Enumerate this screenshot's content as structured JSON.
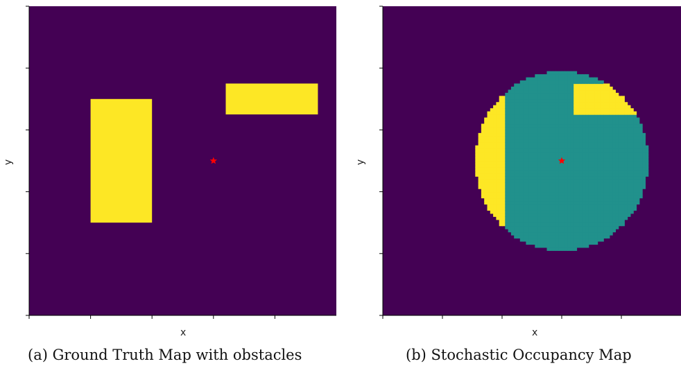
{
  "chart_data": [
    {
      "type": "heatmap",
      "title": "",
      "caption": "(a) Ground Truth Map with obstacles",
      "xlabel": "x",
      "ylabel": "y",
      "colormap": "viridis",
      "colors": {
        "free": "#440154",
        "obstacle": "#fde725",
        "robot": "#ff0000"
      },
      "xlim": [
        0,
        100
      ],
      "ylim": [
        0,
        100
      ],
      "x_ticks": [
        0,
        20,
        40,
        60,
        80
      ],
      "y_ticks": [
        0,
        20,
        40,
        60,
        80,
        100
      ],
      "tick_labels_shown": false,
      "obstacles": [
        {
          "x0": 20,
          "x1": 40,
          "y0": 30,
          "y1": 70
        },
        {
          "x0": 64,
          "x1": 94,
          "y0": 65,
          "y1": 75
        }
      ],
      "robot": {
        "x": 60,
        "y": 50,
        "marker": "star"
      }
    },
    {
      "type": "heatmap",
      "title": "",
      "caption": "(b) Stochastic Occupancy Map",
      "xlabel": "x",
      "ylabel": "y",
      "colormap": "viridis",
      "colors": {
        "free": "#440154",
        "observed_free": "#21918c",
        "obstacle": "#fde725",
        "robot": "#ff0000"
      },
      "xlim": [
        0,
        100
      ],
      "ylim": [
        0,
        100
      ],
      "x_ticks": [
        0,
        20,
        40,
        60,
        80
      ],
      "y_ticks": [
        0,
        20,
        40,
        60,
        80,
        100
      ],
      "tick_labels_shown": false,
      "sensor_radius": 29,
      "robot": {
        "x": 60,
        "y": 50,
        "marker": "star"
      }
    }
  ]
}
